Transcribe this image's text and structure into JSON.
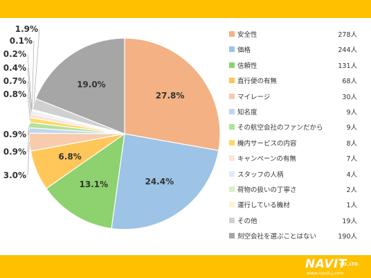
{
  "chart_data": {
    "type": "pie",
    "unit": "人",
    "slices": [
      {
        "label": "安全性",
        "count": 278,
        "percent": "27.8%",
        "color": "#f4b183"
      },
      {
        "label": "価格",
        "count": 244,
        "percent": "24.4%",
        "color": "#9dc3e6"
      },
      {
        "label": "信頼性",
        "count": 131,
        "percent": "13.1%",
        "color": "#8ed16f"
      },
      {
        "label": "直行便の有無",
        "count": 68,
        "percent": "6.8%",
        "color": "#ffc65a"
      },
      {
        "label": "マイレージ",
        "count": 30,
        "percent": "3.0%",
        "color": "#f8cbad"
      },
      {
        "label": "知名度",
        "count": 9,
        "percent": "0.9%",
        "color": "#bdd7ee"
      },
      {
        "label": "その航空会社のファンだから",
        "count": 9,
        "percent": "0.9%",
        "color": "#b4e09c"
      },
      {
        "label": "機内サービスの内容",
        "count": 8,
        "percent": "0.8%",
        "color": "#ffd966"
      },
      {
        "label": "キャンペーンの有無",
        "count": 7,
        "percent": "0.7%",
        "color": "#fbe5d6"
      },
      {
        "label": "スタッフの人柄",
        "count": 4,
        "percent": "0.4%",
        "color": "#deebf7"
      },
      {
        "label": "荷物の扱いの丁寧さ",
        "count": 2,
        "percent": "0.2%",
        "color": "#d9f0c8"
      },
      {
        "label": "運行している機材",
        "count": 1,
        "percent": "0.1%",
        "color": "#fff2cc"
      },
      {
        "label": "その他",
        "count": 19,
        "percent": "1.9%",
        "color": "#d0d0d0"
      },
      {
        "label": "刻空会社を選ぶことはない",
        "count": 190,
        "percent": "19.0%",
        "color": "#a6a6a6"
      }
    ],
    "legend_position": "right"
  },
  "branding": {
    "logo_main": "NAVIT",
    "logo_suffix": "CO.,LTD.",
    "logo_url": "www.navit-j.com",
    "accent_color": "#ffc000"
  }
}
